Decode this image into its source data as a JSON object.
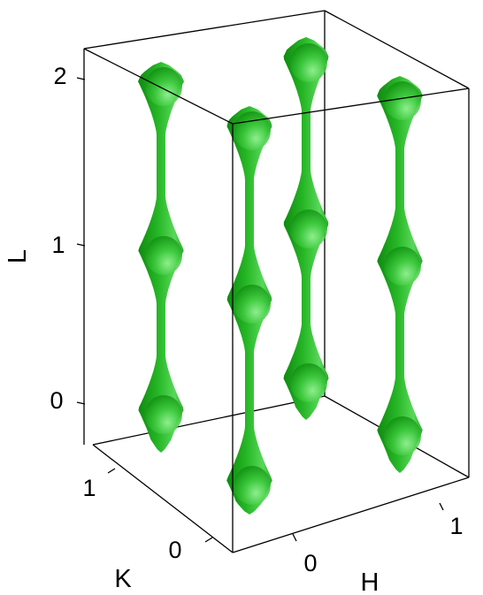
{
  "axes": {
    "L": {
      "title": "L",
      "ticks": [
        "0",
        "1",
        "2"
      ]
    },
    "K": {
      "title": "K",
      "ticks": [
        "0",
        "1"
      ]
    },
    "H": {
      "title": "H",
      "ticks": [
        "0",
        "1"
      ]
    }
  },
  "colors": {
    "surface_dark": "#159615",
    "surface_mid": "#25b525",
    "surface_light": "#6fe46f",
    "edge": "#000000"
  }
}
